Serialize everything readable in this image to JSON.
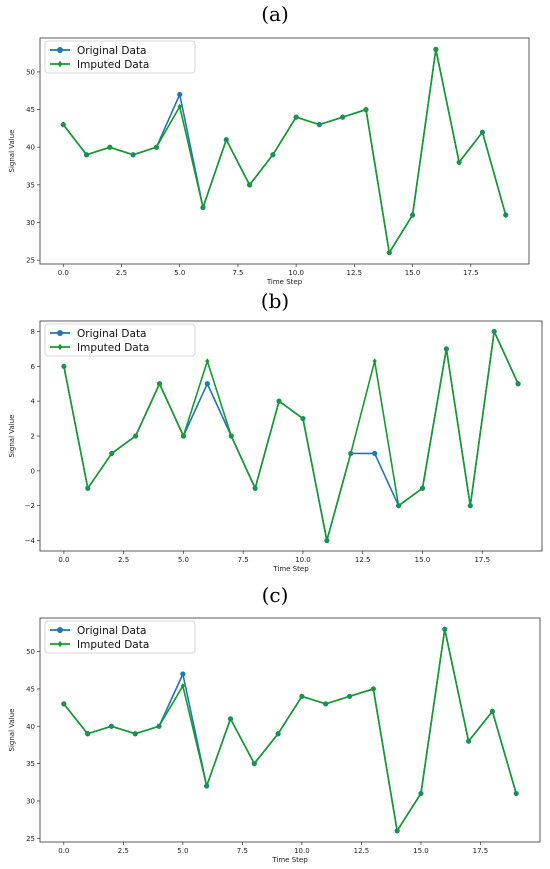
{
  "colors": {
    "original": "#1f77b4",
    "imputed": "#179a2e"
  },
  "chart_data": [
    {
      "type": "line",
      "panel_label": "(a)",
      "xlabel": "Time Step",
      "ylabel": "Signal Value",
      "xlim": [
        -1,
        20
      ],
      "ylim": [
        24.5,
        54.5
      ],
      "xticks": [
        0,
        2.5,
        5,
        7.5,
        10,
        12.5,
        15,
        17.5
      ],
      "xtick_labels": [
        "0.0",
        "2.5",
        "5.0",
        "7.5",
        "10.0",
        "12.5",
        "15.0",
        "17.5"
      ],
      "yticks": [
        25,
        30,
        35,
        40,
        45,
        50
      ],
      "ytick_labels": [
        "25",
        "30",
        "35",
        "40",
        "45",
        "50"
      ],
      "legend_position": "top-left",
      "x": [
        0,
        1,
        2,
        3,
        4,
        5,
        6,
        7,
        8,
        9,
        10,
        11,
        12,
        13,
        14,
        15,
        16,
        17,
        18,
        19
      ],
      "series": [
        {
          "name": "Original Data",
          "marker": "circle",
          "values": [
            43,
            39,
            40,
            39,
            40,
            47,
            32,
            41,
            35,
            39,
            44,
            43,
            44,
            45,
            26,
            31,
            53,
            38,
            42,
            31
          ]
        },
        {
          "name": "Imputed Data",
          "marker": "diamond",
          "values": [
            43,
            39,
            40,
            39,
            40,
            45.4,
            32,
            41,
            35,
            39,
            44,
            43,
            44,
            45,
            26,
            31,
            53,
            38,
            42,
            31
          ]
        }
      ]
    },
    {
      "type": "line",
      "panel_label": "(b)",
      "xlabel": "Time Step",
      "ylabel": "Signal Value",
      "xlim": [
        -1,
        20
      ],
      "ylim": [
        -4.6,
        8.6
      ],
      "xticks": [
        0,
        2.5,
        5,
        7.5,
        10,
        12.5,
        15,
        17.5
      ],
      "xtick_labels": [
        "0.0",
        "2.5",
        "5.0",
        "7.5",
        "10.0",
        "12.5",
        "15.0",
        "17.5"
      ],
      "yticks": [
        -4,
        -2,
        0,
        2,
        4,
        6,
        8
      ],
      "ytick_labels": [
        "−4",
        "−2",
        "0",
        "2",
        "4",
        "6",
        "8"
      ],
      "legend_position": "top-left",
      "x": [
        0,
        1,
        2,
        3,
        4,
        5,
        6,
        7,
        8,
        9,
        10,
        11,
        12,
        13,
        14,
        15,
        16,
        17,
        18,
        19
      ],
      "series": [
        {
          "name": "Original Data",
          "marker": "circle",
          "values": [
            6,
            -1,
            1,
            2,
            5,
            2,
            5,
            2,
            -1,
            4,
            3,
            -4,
            1,
            1,
            -2,
            -1,
            7,
            -2,
            8,
            5
          ]
        },
        {
          "name": "Imputed Data",
          "marker": "diamond",
          "values": [
            6,
            -1,
            1,
            2,
            5,
            2,
            6.3,
            2,
            -1,
            4,
            3,
            -4,
            1,
            6.3,
            -2,
            -1,
            7,
            -2,
            8,
            5
          ]
        }
      ]
    },
    {
      "type": "line",
      "panel_label": "(c)",
      "xlabel": "Time Step",
      "ylabel": "Signal Value",
      "xlim": [
        -1,
        20
      ],
      "ylim": [
        24.5,
        54.5
      ],
      "xticks": [
        0,
        2.5,
        5,
        7.5,
        10,
        12.5,
        15,
        17.5
      ],
      "xtick_labels": [
        "0.0",
        "2.5",
        "5.0",
        "7.5",
        "10.0",
        "12.5",
        "15.0",
        "17.5"
      ],
      "yticks": [
        25,
        30,
        35,
        40,
        45,
        50
      ],
      "ytick_labels": [
        "25",
        "30",
        "35",
        "40",
        "45",
        "50"
      ],
      "legend_position": "top-left",
      "x": [
        0,
        1,
        2,
        3,
        4,
        5,
        6,
        7,
        8,
        9,
        10,
        11,
        12,
        13,
        14,
        15,
        16,
        17,
        18,
        19
      ],
      "series": [
        {
          "name": "Original Data",
          "marker": "circle",
          "values": [
            43,
            39,
            40,
            39,
            40,
            47,
            32,
            41,
            35,
            39,
            44,
            43,
            44,
            45,
            26,
            31,
            53,
            38,
            42,
            31
          ]
        },
        {
          "name": "Imputed Data",
          "marker": "diamond",
          "values": [
            43,
            39,
            40,
            39,
            40,
            45.4,
            32,
            41,
            35,
            39,
            44,
            43,
            44,
            45,
            26,
            31,
            53,
            38,
            42,
            31
          ]
        }
      ]
    }
  ]
}
